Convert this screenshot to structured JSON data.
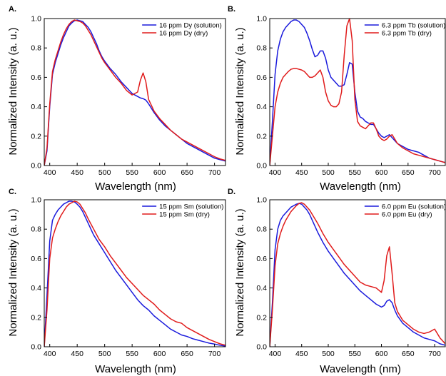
{
  "chart_data": [
    {
      "panel_label": "A.",
      "type": "line",
      "xlabel": "Wavelength (nm)",
      "ylabel": "Normalized Intensity (a. u.)",
      "xlim": [
        390,
        720
      ],
      "ylim": [
        0,
        1.0
      ],
      "xticks": [
        "400",
        "450",
        "500",
        "550",
        "600",
        "650",
        "700"
      ],
      "yticks": [
        "0.0",
        "0.2",
        "0.4",
        "0.6",
        "0.8",
        "1.0"
      ],
      "legend_position": "top-right",
      "series": [
        {
          "name": "16 ppm Dy (solution)",
          "color": "#1a1adc",
          "x": [
            390,
            395,
            400,
            405,
            410,
            415,
            420,
            425,
            430,
            435,
            440,
            445,
            450,
            455,
            460,
            465,
            470,
            475,
            480,
            485,
            490,
            495,
            500,
            510,
            520,
            530,
            540,
            550,
            560,
            565,
            570,
            575,
            580,
            590,
            600,
            610,
            620,
            630,
            640,
            650,
            660,
            670,
            680,
            690,
            700,
            710,
            720
          ],
          "y": [
            0.0,
            0.1,
            0.4,
            0.62,
            0.7,
            0.76,
            0.82,
            0.87,
            0.91,
            0.95,
            0.97,
            0.985,
            0.99,
            0.985,
            0.98,
            0.96,
            0.94,
            0.91,
            0.87,
            0.83,
            0.78,
            0.74,
            0.71,
            0.66,
            0.62,
            0.57,
            0.53,
            0.49,
            0.47,
            0.46,
            0.455,
            0.445,
            0.42,
            0.36,
            0.31,
            0.27,
            0.24,
            0.21,
            0.18,
            0.15,
            0.13,
            0.11,
            0.09,
            0.07,
            0.05,
            0.04,
            0.03
          ]
        },
        {
          "name": "16 ppm Dy (dry)",
          "color": "#e01b1b",
          "x": [
            390,
            395,
            400,
            405,
            410,
            415,
            420,
            425,
            430,
            435,
            440,
            445,
            450,
            455,
            460,
            465,
            470,
            475,
            480,
            485,
            490,
            495,
            500,
            510,
            520,
            530,
            540,
            550,
            560,
            565,
            570,
            575,
            580,
            590,
            600,
            610,
            620,
            630,
            640,
            650,
            660,
            670,
            680,
            690,
            700,
            710,
            720
          ],
          "y": [
            0.0,
            0.12,
            0.42,
            0.64,
            0.72,
            0.78,
            0.84,
            0.89,
            0.93,
            0.96,
            0.98,
            0.99,
            0.985,
            0.98,
            0.97,
            0.95,
            0.92,
            0.89,
            0.85,
            0.81,
            0.77,
            0.73,
            0.7,
            0.65,
            0.6,
            0.56,
            0.51,
            0.48,
            0.5,
            0.58,
            0.63,
            0.57,
            0.45,
            0.37,
            0.32,
            0.28,
            0.24,
            0.21,
            0.18,
            0.16,
            0.14,
            0.12,
            0.1,
            0.08,
            0.06,
            0.045,
            0.035
          ]
        }
      ]
    },
    {
      "panel_label": "B.",
      "type": "line",
      "xlabel": "Wavelength (nm)",
      "ylabel": "Normalized Intensity (a. u.)",
      "xlim": [
        390,
        720
      ],
      "ylim": [
        0,
        1.0
      ],
      "xticks": [
        "400",
        "450",
        "500",
        "550",
        "600",
        "650",
        "700"
      ],
      "yticks": [
        "0.0",
        "0.2",
        "0.4",
        "0.6",
        "0.8",
        "1.0"
      ],
      "legend_position": "top-right",
      "series": [
        {
          "name": "6.3 ppm Tb (solution)",
          "color": "#1a1adc",
          "x": [
            390,
            395,
            400,
            405,
            410,
            415,
            420,
            425,
            430,
            435,
            440,
            445,
            450,
            455,
            460,
            465,
            470,
            475,
            480,
            485,
            490,
            495,
            500,
            505,
            510,
            515,
            520,
            525,
            530,
            535,
            540,
            545,
            550,
            555,
            560,
            565,
            570,
            575,
            580,
            585,
            590,
            595,
            600,
            605,
            610,
            615,
            620,
            625,
            630,
            640,
            650,
            660,
            670,
            680,
            690,
            700,
            710,
            720
          ],
          "y": [
            0.0,
            0.3,
            0.62,
            0.78,
            0.86,
            0.91,
            0.94,
            0.96,
            0.98,
            0.99,
            0.99,
            0.98,
            0.96,
            0.94,
            0.9,
            0.85,
            0.79,
            0.74,
            0.75,
            0.78,
            0.78,
            0.73,
            0.65,
            0.6,
            0.58,
            0.56,
            0.54,
            0.54,
            0.55,
            0.62,
            0.7,
            0.69,
            0.5,
            0.37,
            0.33,
            0.32,
            0.3,
            0.29,
            0.28,
            0.28,
            0.25,
            0.22,
            0.2,
            0.19,
            0.2,
            0.21,
            0.19,
            0.17,
            0.15,
            0.13,
            0.11,
            0.1,
            0.09,
            0.07,
            0.05,
            0.04,
            0.03,
            0.02
          ]
        },
        {
          "name": "6.3 ppm Tb (dry)",
          "color": "#e01b1b",
          "x": [
            390,
            395,
            400,
            405,
            410,
            415,
            420,
            425,
            430,
            435,
            440,
            445,
            450,
            455,
            460,
            465,
            470,
            475,
            480,
            485,
            490,
            495,
            500,
            505,
            510,
            515,
            520,
            525,
            530,
            535,
            540,
            545,
            550,
            555,
            560,
            565,
            570,
            575,
            580,
            585,
            590,
            595,
            600,
            605,
            610,
            615,
            620,
            625,
            630,
            640,
            650,
            660,
            670,
            680,
            690,
            700,
            710,
            720
          ],
          "y": [
            0.0,
            0.2,
            0.4,
            0.5,
            0.56,
            0.6,
            0.62,
            0.64,
            0.655,
            0.66,
            0.66,
            0.655,
            0.65,
            0.64,
            0.62,
            0.6,
            0.6,
            0.61,
            0.63,
            0.65,
            0.6,
            0.5,
            0.44,
            0.41,
            0.4,
            0.4,
            0.42,
            0.5,
            0.75,
            0.95,
            1.0,
            0.85,
            0.45,
            0.3,
            0.27,
            0.26,
            0.25,
            0.27,
            0.29,
            0.29,
            0.25,
            0.2,
            0.18,
            0.17,
            0.18,
            0.2,
            0.21,
            0.18,
            0.15,
            0.12,
            0.1,
            0.08,
            0.07,
            0.06,
            0.05,
            0.04,
            0.03,
            0.02
          ]
        }
      ]
    },
    {
      "panel_label": "C.",
      "type": "line",
      "xlabel": "Wavelength (nm)",
      "ylabel": "Normalized Intensity (a. u.)",
      "xlim": [
        390,
        720
      ],
      "ylim": [
        0,
        1.0
      ],
      "xticks": [
        "400",
        "450",
        "500",
        "550",
        "600",
        "650",
        "700"
      ],
      "yticks": [
        "0.0",
        "0.2",
        "0.4",
        "0.6",
        "0.8",
        "1.0"
      ],
      "legend_position": "top-right",
      "series": [
        {
          "name": "15 ppm Sm (solution)",
          "color": "#1a1adc",
          "x": [
            390,
            395,
            400,
            405,
            410,
            415,
            420,
            425,
            430,
            435,
            440,
            445,
            450,
            455,
            460,
            465,
            470,
            480,
            490,
            500,
            510,
            520,
            530,
            540,
            550,
            560,
            570,
            580,
            590,
            600,
            610,
            620,
            630,
            640,
            650,
            660,
            670,
            680,
            690,
            700,
            710,
            720
          ],
          "y": [
            0.0,
            0.35,
            0.72,
            0.86,
            0.9,
            0.93,
            0.95,
            0.97,
            0.98,
            0.99,
            0.99,
            0.985,
            0.97,
            0.95,
            0.92,
            0.88,
            0.84,
            0.76,
            0.7,
            0.64,
            0.58,
            0.52,
            0.47,
            0.42,
            0.37,
            0.32,
            0.28,
            0.25,
            0.21,
            0.18,
            0.15,
            0.12,
            0.1,
            0.08,
            0.07,
            0.055,
            0.045,
            0.035,
            0.025,
            0.018,
            0.01,
            0.005
          ]
        },
        {
          "name": "15 ppm Sm (dry)",
          "color": "#e01b1b",
          "x": [
            390,
            395,
            400,
            405,
            410,
            415,
            420,
            425,
            430,
            435,
            440,
            445,
            450,
            455,
            460,
            465,
            470,
            480,
            490,
            500,
            510,
            520,
            530,
            540,
            550,
            560,
            570,
            580,
            590,
            600,
            610,
            620,
            630,
            640,
            650,
            660,
            670,
            680,
            690,
            700,
            710,
            720
          ],
          "y": [
            0.0,
            0.25,
            0.6,
            0.74,
            0.8,
            0.85,
            0.89,
            0.92,
            0.95,
            0.97,
            0.98,
            0.99,
            0.985,
            0.97,
            0.94,
            0.91,
            0.87,
            0.8,
            0.73,
            0.68,
            0.62,
            0.57,
            0.52,
            0.47,
            0.43,
            0.39,
            0.35,
            0.32,
            0.29,
            0.25,
            0.22,
            0.19,
            0.17,
            0.16,
            0.13,
            0.11,
            0.09,
            0.07,
            0.05,
            0.035,
            0.02,
            0.01
          ]
        }
      ]
    },
    {
      "panel_label": "D.",
      "type": "line",
      "xlabel": "Wavelength (nm)",
      "ylabel": "Normalized Intensity (a. u.)",
      "xlim": [
        390,
        720
      ],
      "ylim": [
        0,
        1.0
      ],
      "xticks": [
        "400",
        "450",
        "500",
        "550",
        "600",
        "650",
        "700"
      ],
      "yticks": [
        "0.0",
        "0.2",
        "0.4",
        "0.6",
        "0.8",
        "1.0"
      ],
      "legend_position": "top-right",
      "series": [
        {
          "name": "6.0 ppm Eu (solution)",
          "color": "#1a1adc",
          "x": [
            390,
            395,
            400,
            405,
            410,
            415,
            420,
            425,
            430,
            435,
            440,
            445,
            450,
            455,
            460,
            465,
            470,
            480,
            490,
            500,
            510,
            520,
            530,
            540,
            550,
            560,
            570,
            580,
            590,
            600,
            605,
            610,
            615,
            620,
            625,
            630,
            640,
            650,
            660,
            670,
            680,
            690,
            700,
            710,
            720
          ],
          "y": [
            0.0,
            0.3,
            0.66,
            0.8,
            0.86,
            0.89,
            0.91,
            0.93,
            0.95,
            0.96,
            0.97,
            0.975,
            0.97,
            0.95,
            0.93,
            0.9,
            0.86,
            0.78,
            0.71,
            0.65,
            0.6,
            0.55,
            0.5,
            0.46,
            0.42,
            0.38,
            0.35,
            0.32,
            0.29,
            0.27,
            0.28,
            0.31,
            0.32,
            0.3,
            0.25,
            0.21,
            0.16,
            0.13,
            0.1,
            0.08,
            0.06,
            0.05,
            0.04,
            0.02,
            0.01
          ]
        },
        {
          "name": "6.0 ppm Eu (dry)",
          "color": "#e01b1b",
          "x": [
            390,
            395,
            400,
            405,
            410,
            415,
            420,
            425,
            430,
            435,
            440,
            445,
            450,
            455,
            460,
            465,
            470,
            480,
            490,
            500,
            510,
            520,
            530,
            540,
            550,
            560,
            570,
            580,
            590,
            600,
            605,
            610,
            615,
            620,
            625,
            630,
            640,
            650,
            660,
            670,
            680,
            690,
            700,
            710,
            720
          ],
          "y": [
            0.0,
            0.25,
            0.55,
            0.7,
            0.77,
            0.82,
            0.86,
            0.89,
            0.92,
            0.94,
            0.96,
            0.975,
            0.98,
            0.97,
            0.95,
            0.93,
            0.9,
            0.84,
            0.77,
            0.71,
            0.66,
            0.61,
            0.56,
            0.52,
            0.48,
            0.44,
            0.42,
            0.41,
            0.4,
            0.37,
            0.45,
            0.62,
            0.68,
            0.5,
            0.3,
            0.24,
            0.18,
            0.15,
            0.12,
            0.1,
            0.09,
            0.1,
            0.12,
            0.06,
            0.02
          ]
        }
      ]
    }
  ]
}
